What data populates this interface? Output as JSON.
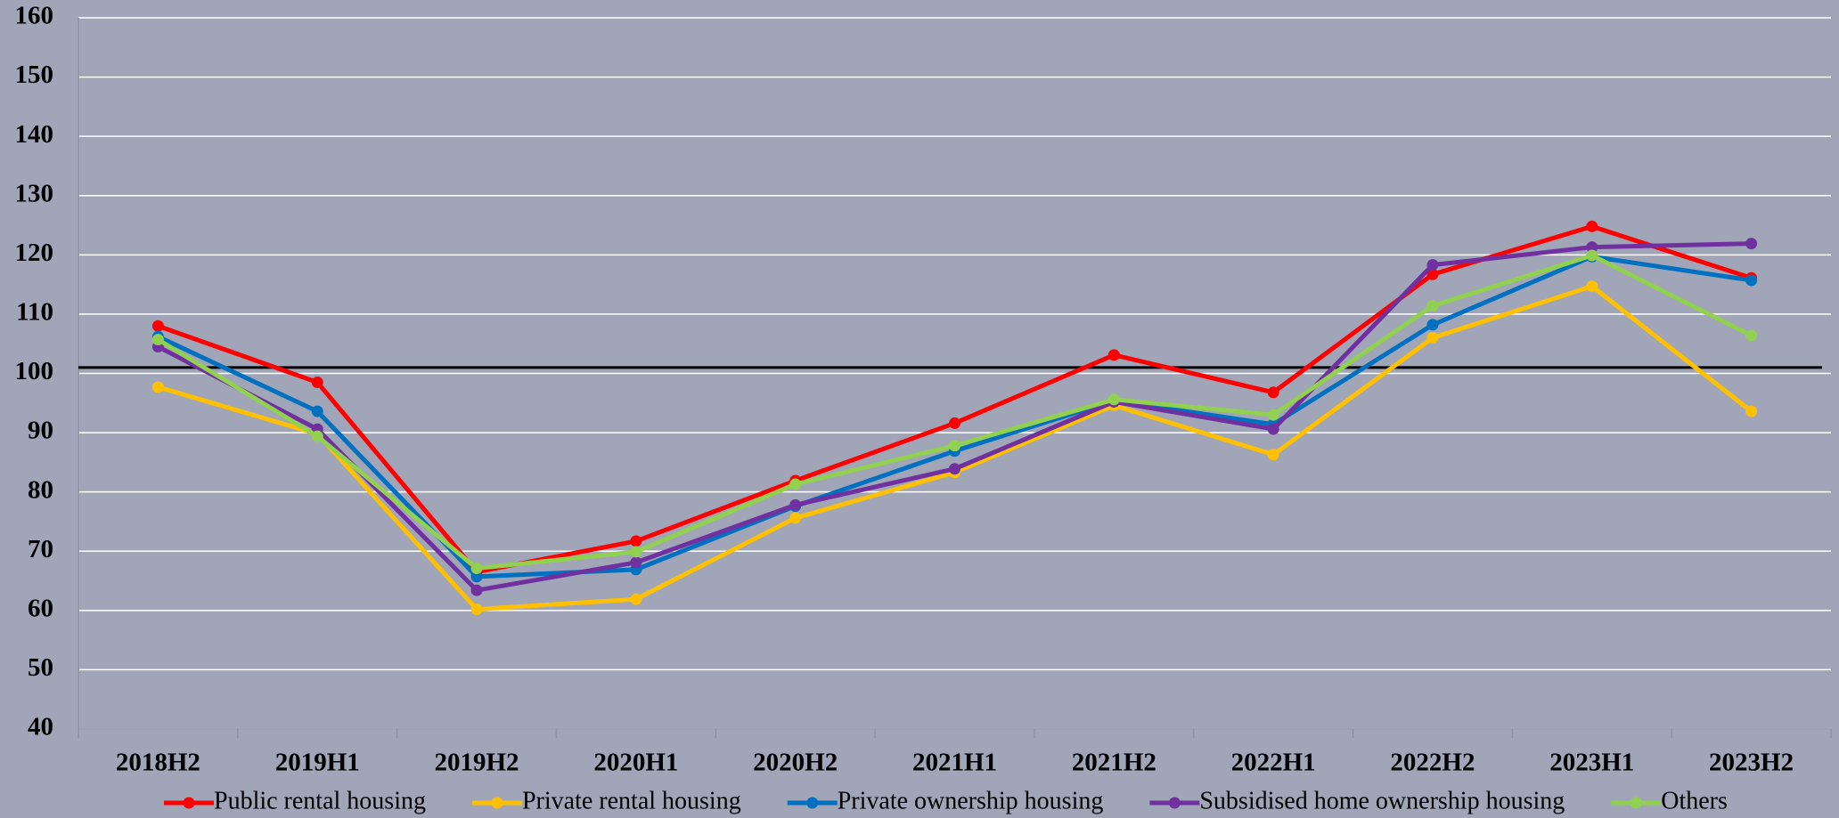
{
  "chart_data": {
    "type": "line",
    "categories": [
      "2018H2",
      "2019H1",
      "2019H2",
      "2020H1",
      "2020H2",
      "2021H1",
      "2021H2",
      "2022H1",
      "2022H2",
      "2023H1",
      "2023H2"
    ],
    "series": [
      {
        "name": "Public rental housing",
        "color": "#ff0000",
        "values": [
          108.0,
          98.5,
          66.5,
          71.7,
          81.9,
          91.6,
          103.1,
          96.8,
          116.7,
          124.8,
          116.1
        ]
      },
      {
        "name": "Private rental housing",
        "color": "#ffc000",
        "values": [
          97.7,
          89.8,
          60.2,
          61.9,
          75.6,
          83.3,
          94.6,
          86.3,
          106.0,
          114.7,
          93.6
        ]
      },
      {
        "name": "Private ownership housing",
        "color": "#0070c0",
        "values": [
          106.2,
          93.6,
          65.7,
          66.9,
          77.6,
          86.9,
          95.4,
          91.4,
          108.2,
          119.7,
          115.7
        ]
      },
      {
        "name": "Subsidised home ownership housing",
        "color": "#7030a0",
        "values": [
          104.5,
          90.6,
          63.4,
          68.1,
          77.8,
          83.9,
          95.2,
          90.6,
          118.3,
          121.3,
          121.9
        ]
      },
      {
        "name": "Others",
        "color": "#92d050",
        "values": [
          105.7,
          89.4,
          67.1,
          69.9,
          81.3,
          87.8,
          95.6,
          93.0,
          111.4,
          119.9,
          106.4
        ]
      }
    ],
    "reference_line": 101,
    "ylim": [
      40,
      160
    ],
    "yticks": [
      40,
      50,
      60,
      70,
      80,
      90,
      100,
      110,
      120,
      130,
      140,
      150,
      160
    ],
    "grid": true
  }
}
